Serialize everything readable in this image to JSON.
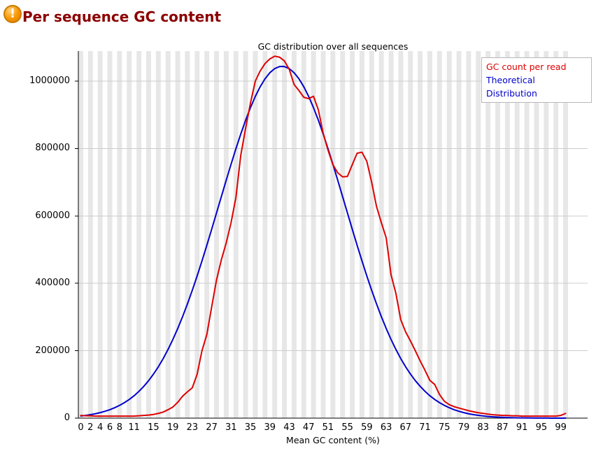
{
  "header": {
    "title": "Per sequence GC content",
    "status": "warning"
  },
  "chart_data": {
    "type": "line",
    "title": "GC distribution over all sequences",
    "xlabel": "Mean GC content (%)",
    "ylabel": "",
    "xlim": [
      0,
      100
    ],
    "ylim": [
      0,
      1088000
    ],
    "grid": "horizontal",
    "background_stripes": true,
    "legend_position": "top-right",
    "y_ticks": [
      0,
      200000,
      400000,
      600000,
      800000,
      1000000
    ],
    "y_tick_labels": [
      "0",
      "200000",
      "400000",
      "600000",
      "800000",
      "1000000"
    ],
    "x_ticks": [
      0,
      2,
      4,
      6,
      8,
      11,
      15,
      19,
      23,
      27,
      31,
      35,
      39,
      43,
      47,
      51,
      55,
      59,
      63,
      67,
      71,
      75,
      79,
      83,
      87,
      91,
      95,
      99
    ],
    "x_tick_labels": [
      "0",
      "2",
      "4",
      "6",
      "8",
      "11",
      "15",
      "19",
      "23",
      "27",
      "31",
      "35",
      "39",
      "43",
      "47",
      "51",
      "55",
      "59",
      "63",
      "67",
      "71",
      "75",
      "79",
      "83",
      "87",
      "91",
      "95",
      "99"
    ],
    "x": [
      0,
      1,
      2,
      3,
      4,
      5,
      6,
      7,
      8,
      9,
      10,
      11,
      12,
      13,
      14,
      15,
      16,
      17,
      18,
      19,
      20,
      21,
      22,
      23,
      24,
      25,
      26,
      27,
      28,
      29,
      30,
      31,
      32,
      33,
      34,
      35,
      36,
      37,
      38,
      39,
      40,
      41,
      42,
      43,
      44,
      45,
      46,
      47,
      48,
      49,
      50,
      51,
      52,
      53,
      54,
      55,
      56,
      57,
      58,
      59,
      60,
      61,
      62,
      63,
      64,
      65,
      66,
      67,
      68,
      69,
      70,
      71,
      72,
      73,
      74,
      75,
      76,
      77,
      78,
      79,
      80,
      81,
      82,
      83,
      84,
      85,
      86,
      87,
      88,
      89,
      90,
      91,
      92,
      93,
      94,
      95,
      96,
      97,
      98,
      99,
      100
    ],
    "series": [
      {
        "name": "Theoretical Distribution",
        "color": "#0000cc",
        "values": [
          6400,
          8100,
          10300,
          12900,
          16300,
          20300,
          25100,
          31000,
          37800,
          45900,
          55400,
          66500,
          79500,
          94300,
          111400,
          130700,
          152400,
          176600,
          203800,
          233600,
          266000,
          301200,
          339000,
          379300,
          421900,
          466300,
          512900,
          560400,
          608900,
          657600,
          706000,
          753400,
          799400,
          843000,
          884000,
          921200,
          954600,
          983200,
          1006800,
          1025000,
          1037100,
          1043200,
          1043200,
          1037000,
          1024900,
          1006900,
          983300,
          954700,
          921300,
          884100,
          843100,
          799500,
          753500,
          706000,
          657500,
          609000,
          560500,
          512900,
          466600,
          421900,
          379300,
          339000,
          301100,
          266000,
          233400,
          203800,
          176700,
          152400,
          130800,
          111400,
          94500,
          79500,
          66500,
          55400,
          45900,
          37800,
          30900,
          25100,
          20300,
          16300,
          13000,
          10300,
          8200,
          6400,
          5000,
          3900,
          3000,
          2300,
          1700,
          1300,
          900,
          700,
          500,
          400,
          300,
          200,
          150,
          100,
          80,
          60,
          40
        ]
      },
      {
        "name": "GC count per read",
        "color": "#dd0000",
        "values": [
          8000,
          7000,
          7000,
          6000,
          6000,
          6000,
          6000,
          6000,
          6000,
          6000,
          6000,
          6000,
          7000,
          8000,
          9000,
          11000,
          14000,
          18000,
          25000,
          33000,
          47000,
          65000,
          78000,
          90000,
          130000,
          200000,
          248000,
          330000,
          410000,
          470000,
          520000,
          580000,
          655000,
          780000,
          860000,
          935000,
          1000000,
          1030000,
          1052000,
          1066000,
          1074000,
          1071000,
          1060000,
          1035000,
          990000,
          972000,
          952000,
          948000,
          955000,
          915000,
          845000,
          795000,
          752000,
          728000,
          716000,
          717000,
          752000,
          786000,
          789000,
          762000,
          700000,
          628000,
          580000,
          535000,
          425000,
          370000,
          292000,
          256000,
          229000,
          200000,
          170000,
          142000,
          112000,
          100000,
          70000,
          50000,
          40000,
          34000,
          30000,
          26000,
          22000,
          19000,
          16000,
          14000,
          12000,
          10000,
          9000,
          8000,
          8000,
          7000,
          7000,
          6000,
          6000,
          6000,
          6000,
          6000,
          6000,
          6000,
          6000,
          8000,
          14000
        ]
      }
    ],
    "colors": {
      "stripe": "#e7e7e7",
      "gridline": "#cccccc",
      "axis": "#000000",
      "title_text": "#8b0000"
    }
  }
}
